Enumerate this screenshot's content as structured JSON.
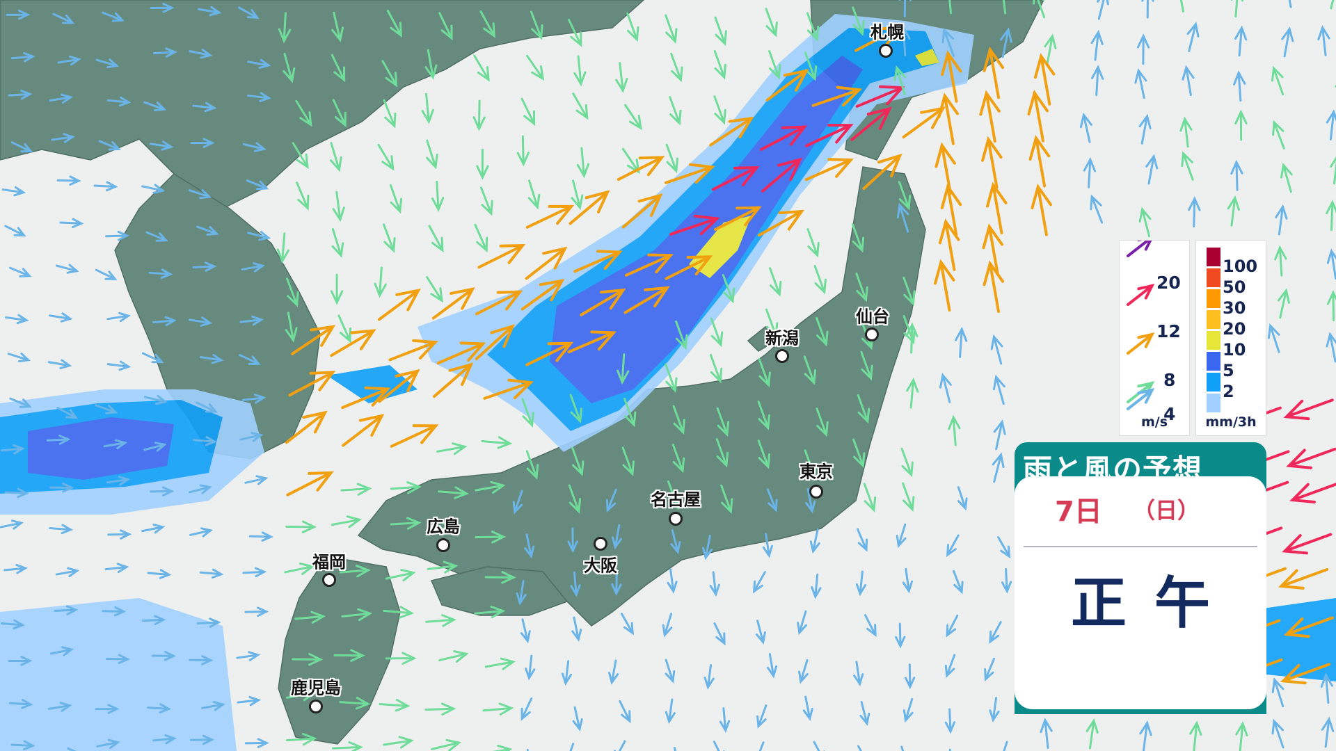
{
  "title": "雨と風の予想",
  "date": "7日",
  "weekday": "（日）",
  "time": "正午",
  "cities": [
    {
      "name": "札幌"
    },
    {
      "name": "仙台"
    },
    {
      "name": "新潟"
    },
    {
      "name": "東京"
    },
    {
      "name": "名古屋"
    },
    {
      "name": "大阪"
    },
    {
      "name": "広島"
    },
    {
      "name": "福岡"
    },
    {
      "name": "鹿児島"
    }
  ],
  "wind_legend": {
    "unit": "m/s",
    "levels": [
      {
        "label": "20",
        "color": "#7a1fa8"
      },
      {
        "label": "12",
        "color": "#f0285a"
      },
      {
        "label": "8",
        "color": "#f0a010"
      },
      {
        "label": "4",
        "color": "#70dc9a"
      },
      {
        "label": "",
        "color": "#6ab4e8"
      }
    ]
  },
  "rain_legend": {
    "unit": "mm/3h",
    "levels": [
      {
        "label": "100",
        "color": "#a80030"
      },
      {
        "label": "50",
        "color": "#f04a20"
      },
      {
        "label": "30",
        "color": "#ff9900"
      },
      {
        "label": "20",
        "color": "#fbbf20"
      },
      {
        "label": "10",
        "color": "#e6e638"
      },
      {
        "label": "5",
        "color": "#3a66f0"
      },
      {
        "label": "2",
        "color": "#10a0f8"
      },
      {
        "label": "",
        "color": "#a0d0ff"
      }
    ]
  },
  "colors": {
    "land": "#678a7e",
    "sea": "#eef0f0",
    "accent": "#0b8a8a"
  }
}
